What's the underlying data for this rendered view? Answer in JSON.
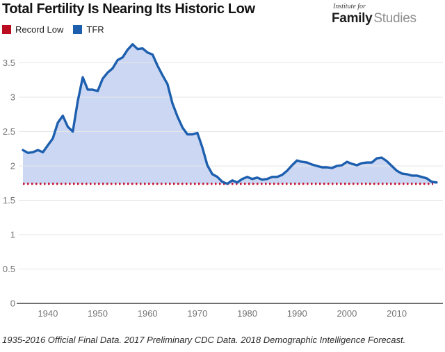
{
  "header": {
    "title": "Total Fertility Is Nearing Its Historic Low",
    "logo": {
      "line1": "Institute for",
      "bold": "Family",
      "light": "Studies"
    }
  },
  "legend": {
    "items": [
      {
        "label": "Record Low",
        "color": "#bb0d20"
      },
      {
        "label": "TFR",
        "color": "#1d5fae"
      }
    ]
  },
  "footer": "1935-2016 Official Final Data. 2017 Preliminary CDC Data. 2018 Demographic Intelligence Forecast.",
  "chart_data": {
    "type": "area",
    "title": "Total Fertility Is Nearing Its Historic Low",
    "xlabel": "",
    "ylabel": "",
    "x": [
      1935,
      1936,
      1937,
      1938,
      1939,
      1940,
      1941,
      1942,
      1943,
      1944,
      1945,
      1946,
      1947,
      1948,
      1949,
      1950,
      1951,
      1952,
      1953,
      1954,
      1955,
      1956,
      1957,
      1958,
      1959,
      1960,
      1961,
      1962,
      1963,
      1964,
      1965,
      1966,
      1967,
      1968,
      1969,
      1970,
      1971,
      1972,
      1973,
      1974,
      1975,
      1976,
      1977,
      1978,
      1979,
      1980,
      1981,
      1982,
      1983,
      1984,
      1985,
      1986,
      1987,
      1988,
      1989,
      1990,
      1991,
      1992,
      1993,
      1994,
      1995,
      1996,
      1997,
      1998,
      1999,
      2000,
      2001,
      2002,
      2003,
      2004,
      2005,
      2006,
      2007,
      2008,
      2009,
      2010,
      2011,
      2012,
      2013,
      2014,
      2015,
      2016,
      2017,
      2018
    ],
    "series": [
      {
        "name": "TFR",
        "type": "line-area",
        "color": "#1d5fae",
        "fill_color": "#ccd8f3",
        "values": [
          2.23,
          2.19,
          2.2,
          2.23,
          2.2,
          2.3,
          2.4,
          2.63,
          2.73,
          2.57,
          2.5,
          2.94,
          3.29,
          3.11,
          3.11,
          3.09,
          3.27,
          3.36,
          3.42,
          3.54,
          3.58,
          3.69,
          3.77,
          3.7,
          3.71,
          3.65,
          3.62,
          3.46,
          3.32,
          3.19,
          2.91,
          2.72,
          2.56,
          2.46,
          2.46,
          2.48,
          2.27,
          2.01,
          1.88,
          1.84,
          1.77,
          1.74,
          1.79,
          1.76,
          1.81,
          1.84,
          1.81,
          1.83,
          1.8,
          1.81,
          1.84,
          1.84,
          1.87,
          1.93,
          2.01,
          2.08,
          2.06,
          2.05,
          2.02,
          2.0,
          1.98,
          1.98,
          1.97,
          2.0,
          2.01,
          2.06,
          2.03,
          2.01,
          2.04,
          2.05,
          2.05,
          2.11,
          2.12,
          2.07,
          2.0,
          1.93,
          1.89,
          1.88,
          1.86,
          1.86,
          1.84,
          1.82,
          1.77,
          1.76
        ]
      },
      {
        "name": "Record Low",
        "type": "dotted-constant",
        "color": "#c8102c",
        "value": 1.74,
        "x_start": 1935,
        "x_end": 2017.3
      }
    ],
    "xticks": [
      1940,
      1950,
      1960,
      1970,
      1980,
      1990,
      2000,
      2010
    ],
    "yticks": [
      0,
      0.5,
      1,
      1.5,
      2,
      2.5,
      3,
      3.5
    ],
    "xlim": [
      1935,
      2019.4
    ],
    "ylim": [
      0,
      3.9
    ],
    "grid": true,
    "grid_color": "#e6e6e6",
    "axis_color": "#404040",
    "tick_label_color": "#757575",
    "legend_position": "top-left"
  }
}
